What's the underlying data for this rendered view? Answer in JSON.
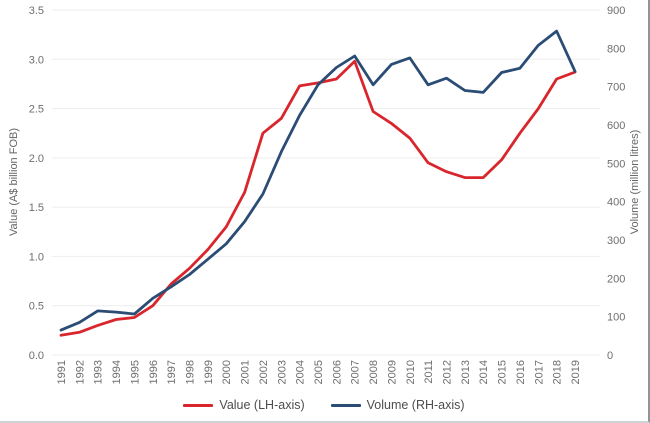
{
  "chart_data": {
    "type": "line",
    "title": "",
    "categories": [
      "1991",
      "1992",
      "1993",
      "1994",
      "1995",
      "1996",
      "1997",
      "1998",
      "1999",
      "2000",
      "2001",
      "2002",
      "2003",
      "2004",
      "2005",
      "2006",
      "2007",
      "2008",
      "2009",
      "2010",
      "2011",
      "2012",
      "2013",
      "2014",
      "2015",
      "2016",
      "2017",
      "2018",
      "2019"
    ],
    "series": [
      {
        "name": "Value (LH-axis)",
        "axis": "left",
        "color": "#d9262c",
        "values": [
          0.2,
          0.23,
          0.3,
          0.36,
          0.38,
          0.5,
          0.72,
          0.88,
          1.07,
          1.3,
          1.65,
          2.25,
          2.4,
          2.73,
          2.76,
          2.8,
          2.98,
          2.47,
          2.35,
          2.2,
          1.95,
          1.86,
          1.8,
          1.8,
          1.98,
          2.25,
          2.5,
          2.8,
          2.87
        ]
      },
      {
        "name": "Volume (RH-axis)",
        "axis": "right",
        "color": "#2b4c74",
        "values": [
          65,
          85,
          115,
          112,
          107,
          148,
          178,
          210,
          250,
          290,
          348,
          420,
          530,
          625,
          705,
          750,
          780,
          705,
          758,
          775,
          705,
          722,
          690,
          685,
          737,
          748,
          808,
          845,
          740
        ]
      }
    ],
    "left_axis": {
      "label": "Value (A$ billion FOB)",
      "min": 0,
      "max": 3.5,
      "ticks": [
        "0.0",
        "0.5",
        "1.0",
        "1.5",
        "2.0",
        "2.5",
        "3.0",
        "3.5"
      ]
    },
    "right_axis": {
      "label": "Volume (million litres)",
      "min": 0,
      "max": 900,
      "ticks": [
        "0",
        "100",
        "200",
        "300",
        "400",
        "500",
        "600",
        "700",
        "800",
        "900"
      ]
    },
    "grid": "horizontal",
    "legend_position": "bottom"
  }
}
